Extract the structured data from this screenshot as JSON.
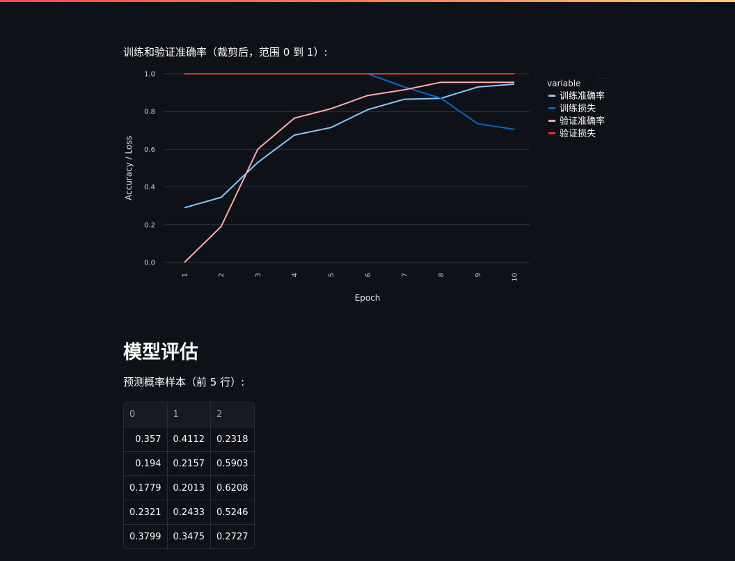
{
  "caption": "训练和验证准确率（裁剪后，范围 0 到 1）:",
  "section_title": "模型评估",
  "table_caption": "预测概率样本（前 5 行）:",
  "table": {
    "headers": [
      "0",
      "1",
      "2"
    ],
    "rows": [
      [
        "0.357",
        "0.4112",
        "0.2318"
      ],
      [
        "0.194",
        "0.2157",
        "0.5903"
      ],
      [
        "0.1779",
        "0.2013",
        "0.6208"
      ],
      [
        "0.2321",
        "0.2433",
        "0.5246"
      ],
      [
        "0.3799",
        "0.3475",
        "0.2727"
      ]
    ]
  },
  "chart_data": {
    "type": "line",
    "xlabel": "Epoch",
    "ylabel": "Accuracy / Loss",
    "x": [
      "1",
      "2",
      "3",
      "4",
      "5",
      "6",
      "7",
      "8",
      "9",
      "10"
    ],
    "ylim": [
      0,
      1
    ],
    "yticks": [
      "0.0",
      "0.2",
      "0.4",
      "0.6",
      "0.8",
      "1.0"
    ],
    "grid": true,
    "legend_title": "variable",
    "legend_position": "right",
    "series": [
      {
        "name": "训练准确率",
        "color": "#83c9ff",
        "values": [
          0.29,
          0.345,
          0.53,
          0.675,
          0.715,
          0.81,
          0.865,
          0.87,
          0.93,
          0.945
        ]
      },
      {
        "name": "训练损失",
        "color": "#0068c9",
        "values": [
          null,
          null,
          null,
          null,
          null,
          1.0,
          0.93,
          0.87,
          0.735,
          0.705
        ]
      },
      {
        "name": "验证准确率",
        "color": "#ffabab",
        "values": [
          0.0,
          0.19,
          0.6,
          0.765,
          0.815,
          0.885,
          0.915,
          0.955,
          0.955,
          0.955
        ]
      },
      {
        "name": "验证损失",
        "color": "#ff2b2b",
        "values": [
          1.0,
          1.0,
          1.0,
          1.0,
          1.0,
          1.0,
          1.0,
          1.0,
          1.0,
          1.0
        ]
      }
    ]
  }
}
